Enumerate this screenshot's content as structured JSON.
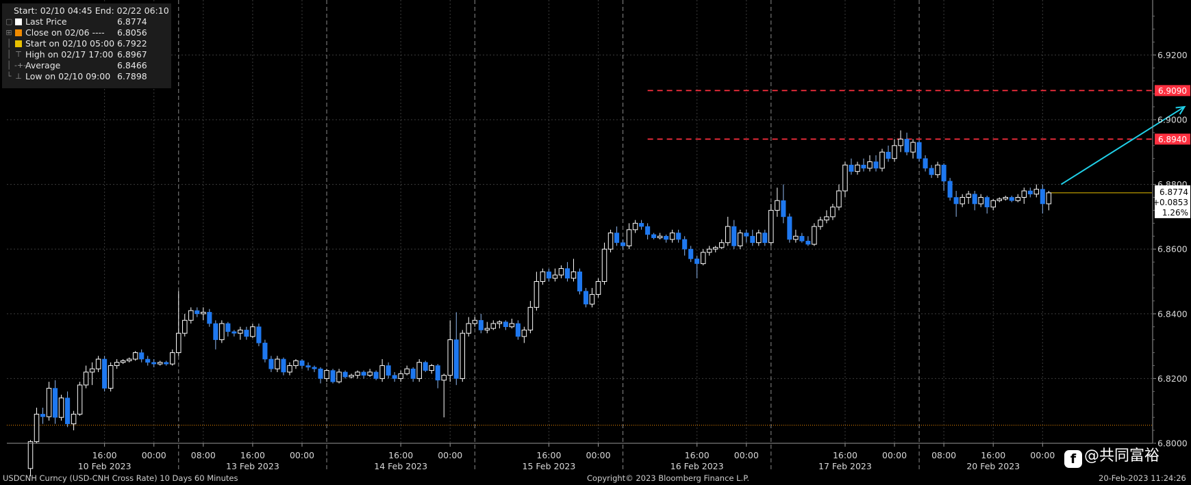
{
  "legend": {
    "header": "Start: 02/10 04:45 End: 02/22 06:10",
    "rows": [
      {
        "label": "Last Price",
        "value": "6.8774",
        "color": "#ffffff",
        "marker": "square"
      },
      {
        "label": "Close on 02/06 ----",
        "value": "6.8056",
        "color": "#f08a00",
        "marker": "square"
      },
      {
        "label": "Start on 02/10 05:00",
        "value": "6.7922",
        "color": "#e8c000",
        "marker": "square"
      },
      {
        "label": "High on 02/17 17:00",
        "value": "6.8967",
        "color": "#9a9a9a",
        "marker": "high"
      },
      {
        "label": "Average",
        "value": "6.8466",
        "color": "#9a9a9a",
        "marker": "average"
      },
      {
        "label": "Low on 02/10 09:00",
        "value": "6.7898",
        "color": "#9a9a9a",
        "marker": "low"
      }
    ]
  },
  "footer": {
    "left": "USDCNH Curncy (USD-CNH Cross Rate) 10 Days 60 Minutes",
    "center": "Copyright© 2023 Bloomberg Finance L.P.",
    "right": "20-Feb-2023 11:24:26"
  },
  "watermark": {
    "icon": "f",
    "text": "@共同富裕"
  },
  "chart_data": {
    "type": "candlestick",
    "ylim": [
      6.8,
      6.9353
    ],
    "yticks": [
      "6.9200",
      "6.9000",
      "6.8800",
      "6.8600",
      "6.8400",
      "6.8200",
      "6.8000"
    ],
    "ytick_values": [
      6.92,
      6.9,
      6.88,
      6.86,
      6.84,
      6.82,
      6.8
    ],
    "xticks": [
      {
        "label": "16:00",
        "slot": 12
      },
      {
        "label": "00:00",
        "slot": 20
      },
      {
        "label": "08:00",
        "slot": 28
      },
      {
        "label": "16:00",
        "slot": 36
      },
      {
        "label": "00:00",
        "slot": 44
      },
      {
        "label": "16:00",
        "slot": 60
      },
      {
        "label": "00:00",
        "slot": 68
      },
      {
        "label": "16:00",
        "slot": 84
      },
      {
        "label": "00:00",
        "slot": 92
      },
      {
        "label": "16:00",
        "slot": 108
      },
      {
        "label": "00:00",
        "slot": 116
      },
      {
        "label": "16:00",
        "slot": 132
      },
      {
        "label": "00:00",
        "slot": 140
      },
      {
        "label": "08:00",
        "slot": 148
      },
      {
        "label": "16:00",
        "slot": 156
      },
      {
        "label": "00:00",
        "slot": 164
      }
    ],
    "day_labels": [
      {
        "label": "10 Feb 2023",
        "slot": 12
      },
      {
        "label": "13 Feb 2023",
        "slot": 36
      },
      {
        "label": "14 Feb 2023",
        "slot": 60
      },
      {
        "label": "15 Feb 2023",
        "slot": 84
      },
      {
        "label": "16 Feb 2023",
        "slot": 108
      },
      {
        "label": "17 Feb 2023",
        "slot": 132
      },
      {
        "label": "20 Feb 2023",
        "slot": 156
      }
    ],
    "day_separators": [
      24,
      48,
      72,
      96,
      120,
      144
    ],
    "slots_total": 182,
    "candles": [
      [
        6.7922,
        6.8005,
        6.7898,
        6.801
      ],
      [
        6.8005,
        6.809,
        6.8,
        6.811
      ],
      [
        6.809,
        6.8082,
        6.806,
        6.811
      ],
      [
        6.8082,
        6.817,
        6.807,
        6.819
      ],
      [
        6.817,
        6.808,
        6.806,
        6.8195
      ],
      [
        6.808,
        6.814,
        6.807,
        6.815
      ],
      [
        6.814,
        6.806,
        6.805,
        6.816
      ],
      [
        6.806,
        6.809,
        6.804,
        6.81
      ],
      [
        6.809,
        6.818,
        6.8085,
        6.819
      ],
      [
        6.818,
        6.822,
        6.817,
        6.824
      ],
      [
        6.822,
        6.823,
        6.818,
        6.825
      ],
      [
        6.823,
        6.826,
        6.822,
        6.827
      ],
      [
        6.826,
        6.817,
        6.816,
        6.827
      ],
      [
        6.817,
        6.824,
        6.816,
        6.825
      ],
      [
        6.824,
        6.825,
        6.823,
        6.826
      ],
      [
        6.825,
        6.8255,
        6.8245,
        6.826
      ],
      [
        6.8255,
        6.826,
        6.825,
        6.8265
      ],
      [
        6.826,
        6.828,
        6.8255,
        6.8285
      ],
      [
        6.828,
        6.826,
        6.825,
        6.829
      ],
      [
        6.826,
        6.825,
        6.824,
        6.827
      ],
      [
        6.825,
        6.8245,
        6.8235,
        6.826
      ],
      [
        6.8245,
        6.825,
        6.824,
        6.8255
      ],
      [
        6.825,
        6.8245,
        6.824,
        6.8255
      ],
      [
        6.8245,
        6.828,
        6.824,
        6.829
      ],
      [
        6.828,
        6.834,
        6.827,
        6.847
      ],
      [
        6.834,
        6.838,
        6.833,
        6.84
      ],
      [
        6.838,
        6.841,
        6.837,
        6.842
      ],
      [
        6.841,
        6.84,
        6.839,
        6.842
      ],
      [
        6.84,
        6.8405,
        6.838,
        6.842
      ],
      [
        6.8405,
        6.837,
        6.836,
        6.8415
      ],
      [
        6.837,
        6.832,
        6.829,
        6.838
      ],
      [
        6.832,
        6.837,
        6.831,
        6.838
      ],
      [
        6.837,
        6.8345,
        6.833,
        6.8375
      ],
      [
        6.8345,
        6.834,
        6.833,
        6.835
      ],
      [
        6.834,
        6.835,
        6.832,
        6.836
      ],
      [
        6.835,
        6.833,
        6.832,
        6.836
      ],
      [
        6.833,
        6.836,
        6.8325,
        6.837
      ],
      [
        6.836,
        6.831,
        6.83,
        6.837
      ],
      [
        6.831,
        6.826,
        6.825,
        6.832
      ],
      [
        6.826,
        6.823,
        6.822,
        6.827
      ],
      [
        6.823,
        6.826,
        6.822,
        6.827
      ],
      [
        6.826,
        6.822,
        6.821,
        6.8265
      ],
      [
        6.822,
        6.824,
        6.821,
        6.825
      ],
      [
        6.824,
        6.8255,
        6.823,
        6.826
      ],
      [
        6.8255,
        6.824,
        6.823,
        6.826
      ],
      [
        6.824,
        6.8235,
        6.8225,
        6.825
      ],
      [
        6.8235,
        6.823,
        6.822,
        6.824
      ],
      [
        6.823,
        6.82,
        6.8185,
        6.8235
      ],
      [
        6.82,
        6.8225,
        6.819,
        6.823
      ],
      [
        6.8225,
        6.819,
        6.8185,
        6.823
      ],
      [
        6.819,
        6.822,
        6.8185,
        6.823
      ],
      [
        6.822,
        6.8205,
        6.82,
        6.8225
      ],
      [
        6.8205,
        6.821,
        6.82,
        6.8215
      ],
      [
        6.821,
        6.822,
        6.82,
        6.8225
      ],
      [
        6.822,
        6.821,
        6.82,
        6.8225
      ],
      [
        6.821,
        6.822,
        6.8205,
        6.823
      ],
      [
        6.822,
        6.82,
        6.8195,
        6.8225
      ],
      [
        6.82,
        6.824,
        6.819,
        6.826
      ],
      [
        6.824,
        6.821,
        6.82,
        6.825
      ],
      [
        6.821,
        6.82,
        6.819,
        6.822
      ],
      [
        6.82,
        6.8215,
        6.819,
        6.8225
      ],
      [
        6.8215,
        6.823,
        6.821,
        6.824
      ],
      [
        6.823,
        6.82,
        6.819,
        6.8235
      ],
      [
        6.82,
        6.825,
        6.819,
        6.826
      ],
      [
        6.825,
        6.8225,
        6.822,
        6.8255
      ],
      [
        6.8225,
        6.824,
        6.8215,
        6.8245
      ],
      [
        6.824,
        6.8195,
        6.817,
        6.8245
      ],
      [
        6.8195,
        6.821,
        6.808,
        6.8215
      ],
      [
        6.821,
        6.832,
        6.819,
        6.838
      ],
      [
        6.832,
        6.82,
        6.818,
        6.8405
      ],
      [
        6.82,
        6.834,
        6.819,
        6.835
      ],
      [
        6.834,
        6.837,
        6.833,
        6.839
      ],
      [
        6.837,
        6.838,
        6.836,
        6.839
      ],
      [
        6.838,
        6.835,
        6.834,
        6.84
      ],
      [
        6.835,
        6.8355,
        6.834,
        6.8375
      ],
      [
        6.8355,
        6.837,
        6.835,
        6.838
      ],
      [
        6.837,
        6.8375,
        6.8355,
        6.838
      ],
      [
        6.8375,
        6.836,
        6.835,
        6.838
      ],
      [
        6.836,
        6.837,
        6.8355,
        6.8385
      ],
      [
        6.837,
        6.833,
        6.832,
        6.838
      ],
      [
        6.833,
        6.835,
        6.831,
        6.836
      ],
      [
        6.835,
        6.842,
        6.834,
        6.844
      ],
      [
        6.842,
        6.85,
        6.841,
        6.853
      ],
      [
        6.85,
        6.853,
        6.849,
        6.854
      ],
      [
        6.853,
        6.851,
        6.85,
        6.854
      ],
      [
        6.851,
        6.852,
        6.85,
        6.854
      ],
      [
        6.852,
        6.854,
        6.851,
        6.855
      ],
      [
        6.854,
        6.851,
        6.85,
        6.856
      ],
      [
        6.851,
        6.853,
        6.85,
        6.857
      ],
      [
        6.853,
        6.847,
        6.846,
        6.854
      ],
      [
        6.847,
        6.843,
        6.842,
        6.848
      ],
      [
        6.843,
        6.846,
        6.842,
        6.848
      ],
      [
        6.846,
        6.85,
        6.845,
        6.851
      ],
      [
        6.85,
        6.86,
        6.849,
        6.862
      ],
      [
        6.86,
        6.865,
        6.859,
        6.866
      ],
      [
        6.865,
        6.862,
        6.861,
        6.867
      ],
      [
        6.862,
        6.861,
        6.86,
        6.863
      ],
      [
        6.861,
        6.866,
        6.86,
        6.868
      ],
      [
        6.866,
        6.868,
        6.865,
        6.869
      ],
      [
        6.868,
        6.867,
        6.866,
        6.869
      ],
      [
        6.867,
        6.8645,
        6.863,
        6.868
      ],
      [
        6.8645,
        6.8635,
        6.863,
        6.865
      ],
      [
        6.8635,
        6.864,
        6.863,
        6.865
      ],
      [
        6.864,
        6.863,
        6.862,
        6.8645
      ],
      [
        6.863,
        6.865,
        6.862,
        6.866
      ],
      [
        6.865,
        6.863,
        6.862,
        6.866
      ],
      [
        6.863,
        6.86,
        6.858,
        6.864
      ],
      [
        6.86,
        6.857,
        6.856,
        6.861
      ],
      [
        6.857,
        6.8555,
        6.851,
        6.858
      ],
      [
        6.8555,
        6.859,
        6.855,
        6.86
      ],
      [
        6.859,
        6.86,
        6.858,
        6.861
      ],
      [
        6.86,
        6.8605,
        6.859,
        6.861
      ],
      [
        6.8605,
        6.862,
        6.86,
        6.863
      ],
      [
        6.862,
        6.867,
        6.861,
        6.87
      ],
      [
        6.867,
        6.861,
        6.86,
        6.869
      ],
      [
        6.861,
        6.865,
        6.86,
        6.866
      ],
      [
        6.865,
        6.864,
        6.862,
        6.866
      ],
      [
        6.864,
        6.862,
        6.861,
        6.866
      ],
      [
        6.862,
        6.865,
        6.861,
        6.866
      ],
      [
        6.865,
        6.862,
        6.861,
        6.866
      ],
      [
        6.862,
        6.872,
        6.861,
        6.874
      ],
      [
        6.872,
        6.875,
        6.87,
        6.879
      ],
      [
        6.875,
        6.87,
        6.868,
        6.88
      ],
      [
        6.87,
        6.863,
        6.862,
        6.871
      ],
      [
        6.863,
        6.864,
        6.862,
        6.866
      ],
      [
        6.864,
        6.8625,
        6.862,
        6.865
      ],
      [
        6.8625,
        6.8615,
        6.861,
        6.864
      ],
      [
        6.8615,
        6.867,
        6.861,
        6.868
      ],
      [
        6.867,
        6.869,
        6.866,
        6.87
      ],
      [
        6.869,
        6.87,
        6.868,
        6.872
      ],
      [
        6.87,
        6.873,
        6.869,
        6.874
      ],
      [
        6.873,
        6.878,
        6.872,
        6.88
      ],
      [
        6.878,
        6.886,
        6.876,
        6.887
      ],
      [
        6.886,
        6.884,
        6.883,
        6.888
      ],
      [
        6.884,
        6.886,
        6.883,
        6.887
      ],
      [
        6.886,
        6.885,
        6.884,
        6.888
      ],
      [
        6.885,
        6.887,
        6.884,
        6.889
      ],
      [
        6.887,
        6.885,
        6.884,
        6.889
      ],
      [
        6.885,
        6.89,
        6.884,
        6.891
      ],
      [
        6.89,
        6.888,
        6.887,
        6.892
      ],
      [
        6.888,
        6.892,
        6.887,
        6.894
      ],
      [
        6.892,
        6.894,
        6.89,
        6.8967
      ],
      [
        6.894,
        6.89,
        6.889,
        6.896
      ],
      [
        6.89,
        6.893,
        6.888,
        6.894
      ],
      [
        6.893,
        6.888,
        6.887,
        6.8935
      ],
      [
        6.888,
        6.885,
        6.884,
        6.889
      ],
      [
        6.885,
        6.883,
        6.882,
        6.886
      ],
      [
        6.883,
        6.886,
        6.882,
        6.887
      ],
      [
        6.886,
        6.881,
        6.878,
        6.8865
      ],
      [
        6.881,
        6.876,
        6.875,
        6.882
      ],
      [
        6.876,
        6.874,
        6.87,
        6.878
      ],
      [
        6.874,
        6.876,
        6.873,
        6.877
      ],
      [
        6.876,
        6.877,
        6.874,
        6.878
      ],
      [
        6.877,
        6.874,
        6.872,
        6.878
      ],
      [
        6.874,
        6.876,
        6.873,
        6.877
      ],
      [
        6.876,
        6.873,
        6.871,
        6.8765
      ],
      [
        6.873,
        6.875,
        6.872,
        6.8755
      ],
      [
        6.875,
        6.8755,
        6.8745,
        6.876
      ],
      [
        6.8755,
        6.876,
        6.875,
        6.8765
      ],
      [
        6.876,
        6.875,
        6.8745,
        6.8765
      ],
      [
        6.875,
        6.876,
        6.8745,
        6.877
      ],
      [
        6.876,
        6.878,
        6.874,
        6.879
      ],
      [
        6.878,
        6.877,
        6.876,
        6.879
      ],
      [
        6.877,
        6.8785,
        6.876,
        6.88
      ],
      [
        6.8785,
        6.874,
        6.871,
        6.88
      ],
      [
        6.874,
        6.8774,
        6.872,
        6.878
      ]
    ],
    "colors": {
      "up": "#ffffff",
      "down": "#1e78f0",
      "grid": "#3c3c3c",
      "separator": "#8a8a8a"
    },
    "last_price": {
      "value": 6.8774,
      "label": "6.8774",
      "change": "+0.0853",
      "percent": "1.26%",
      "color": "#e8c000"
    },
    "ref_lines": [
      {
        "value": 6.909,
        "label": "6.9090",
        "color": "#ff3040"
      },
      {
        "value": 6.894,
        "label": "6.8940",
        "color": "#ff3040"
      }
    ],
    "prev_close_line": {
      "value": 6.8056,
      "color": "#f08a00"
    },
    "annotation": {
      "type": "arrow",
      "color": "#20d0e8",
      "from": [
        167,
        6.88
      ],
      "to": [
        187,
        6.904
      ]
    }
  }
}
